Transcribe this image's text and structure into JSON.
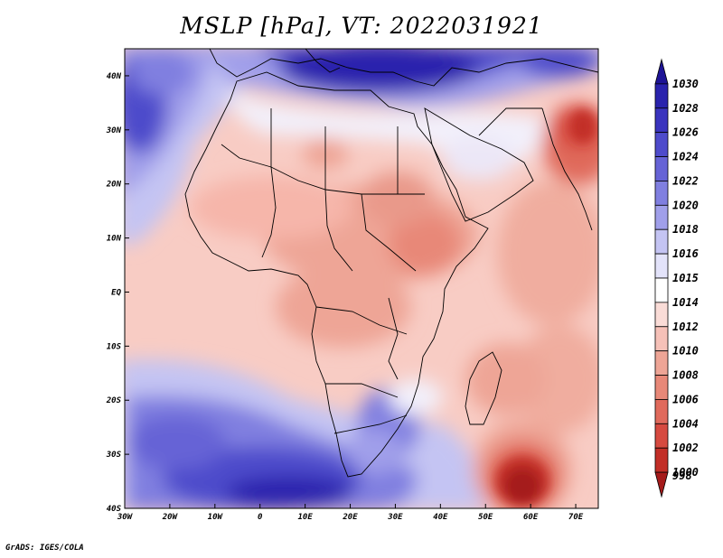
{
  "title": "MSLP [hPa], VT: 2022031921",
  "credit": "GrADS: IGES/COLA",
  "map": {
    "lon_range": [
      -30,
      75
    ],
    "lat_range": [
      -40,
      45
    ],
    "lon_ticks": [
      "30W",
      "20W",
      "10W",
      "0",
      "10E",
      "20E",
      "30E",
      "40E",
      "50E",
      "60E",
      "70E"
    ],
    "lat_ticks": [
      "40N",
      "30N",
      "20N",
      "10N",
      "EQ",
      "10S",
      "20S",
      "30S",
      "40S"
    ]
  },
  "colorbar": {
    "levels": [
      {
        "label": "1030",
        "color": "#1e1496"
      },
      {
        "label": "1028",
        "color": "#2a23ad"
      },
      {
        "label": "1026",
        "color": "#3a34be"
      },
      {
        "label": "1024",
        "color": "#4e4bcb"
      },
      {
        "label": "1022",
        "color": "#6663d6"
      },
      {
        "label": "1020",
        "color": "#807fe0"
      },
      {
        "label": "1018",
        "color": "#a09fea"
      },
      {
        "label": "1016",
        "color": "#c4c4f3"
      },
      {
        "label": "1015",
        "color": "#e3e3fa"
      },
      {
        "label": "1014",
        "color": "#ffffff"
      },
      {
        "label": "1012",
        "color": "#fadcd7"
      },
      {
        "label": "1010",
        "color": "#f6c1b8"
      },
      {
        "label": "1008",
        "color": "#eea596"
      },
      {
        "label": "1006",
        "color": "#e88878"
      },
      {
        "label": "1004",
        "color": "#e06a5c"
      },
      {
        "label": "1002",
        "color": "#d64a40"
      },
      {
        "label": "1000",
        "color": "#c22e27"
      },
      {
        "label": "998",
        "color": "#a51b1b"
      }
    ]
  }
}
